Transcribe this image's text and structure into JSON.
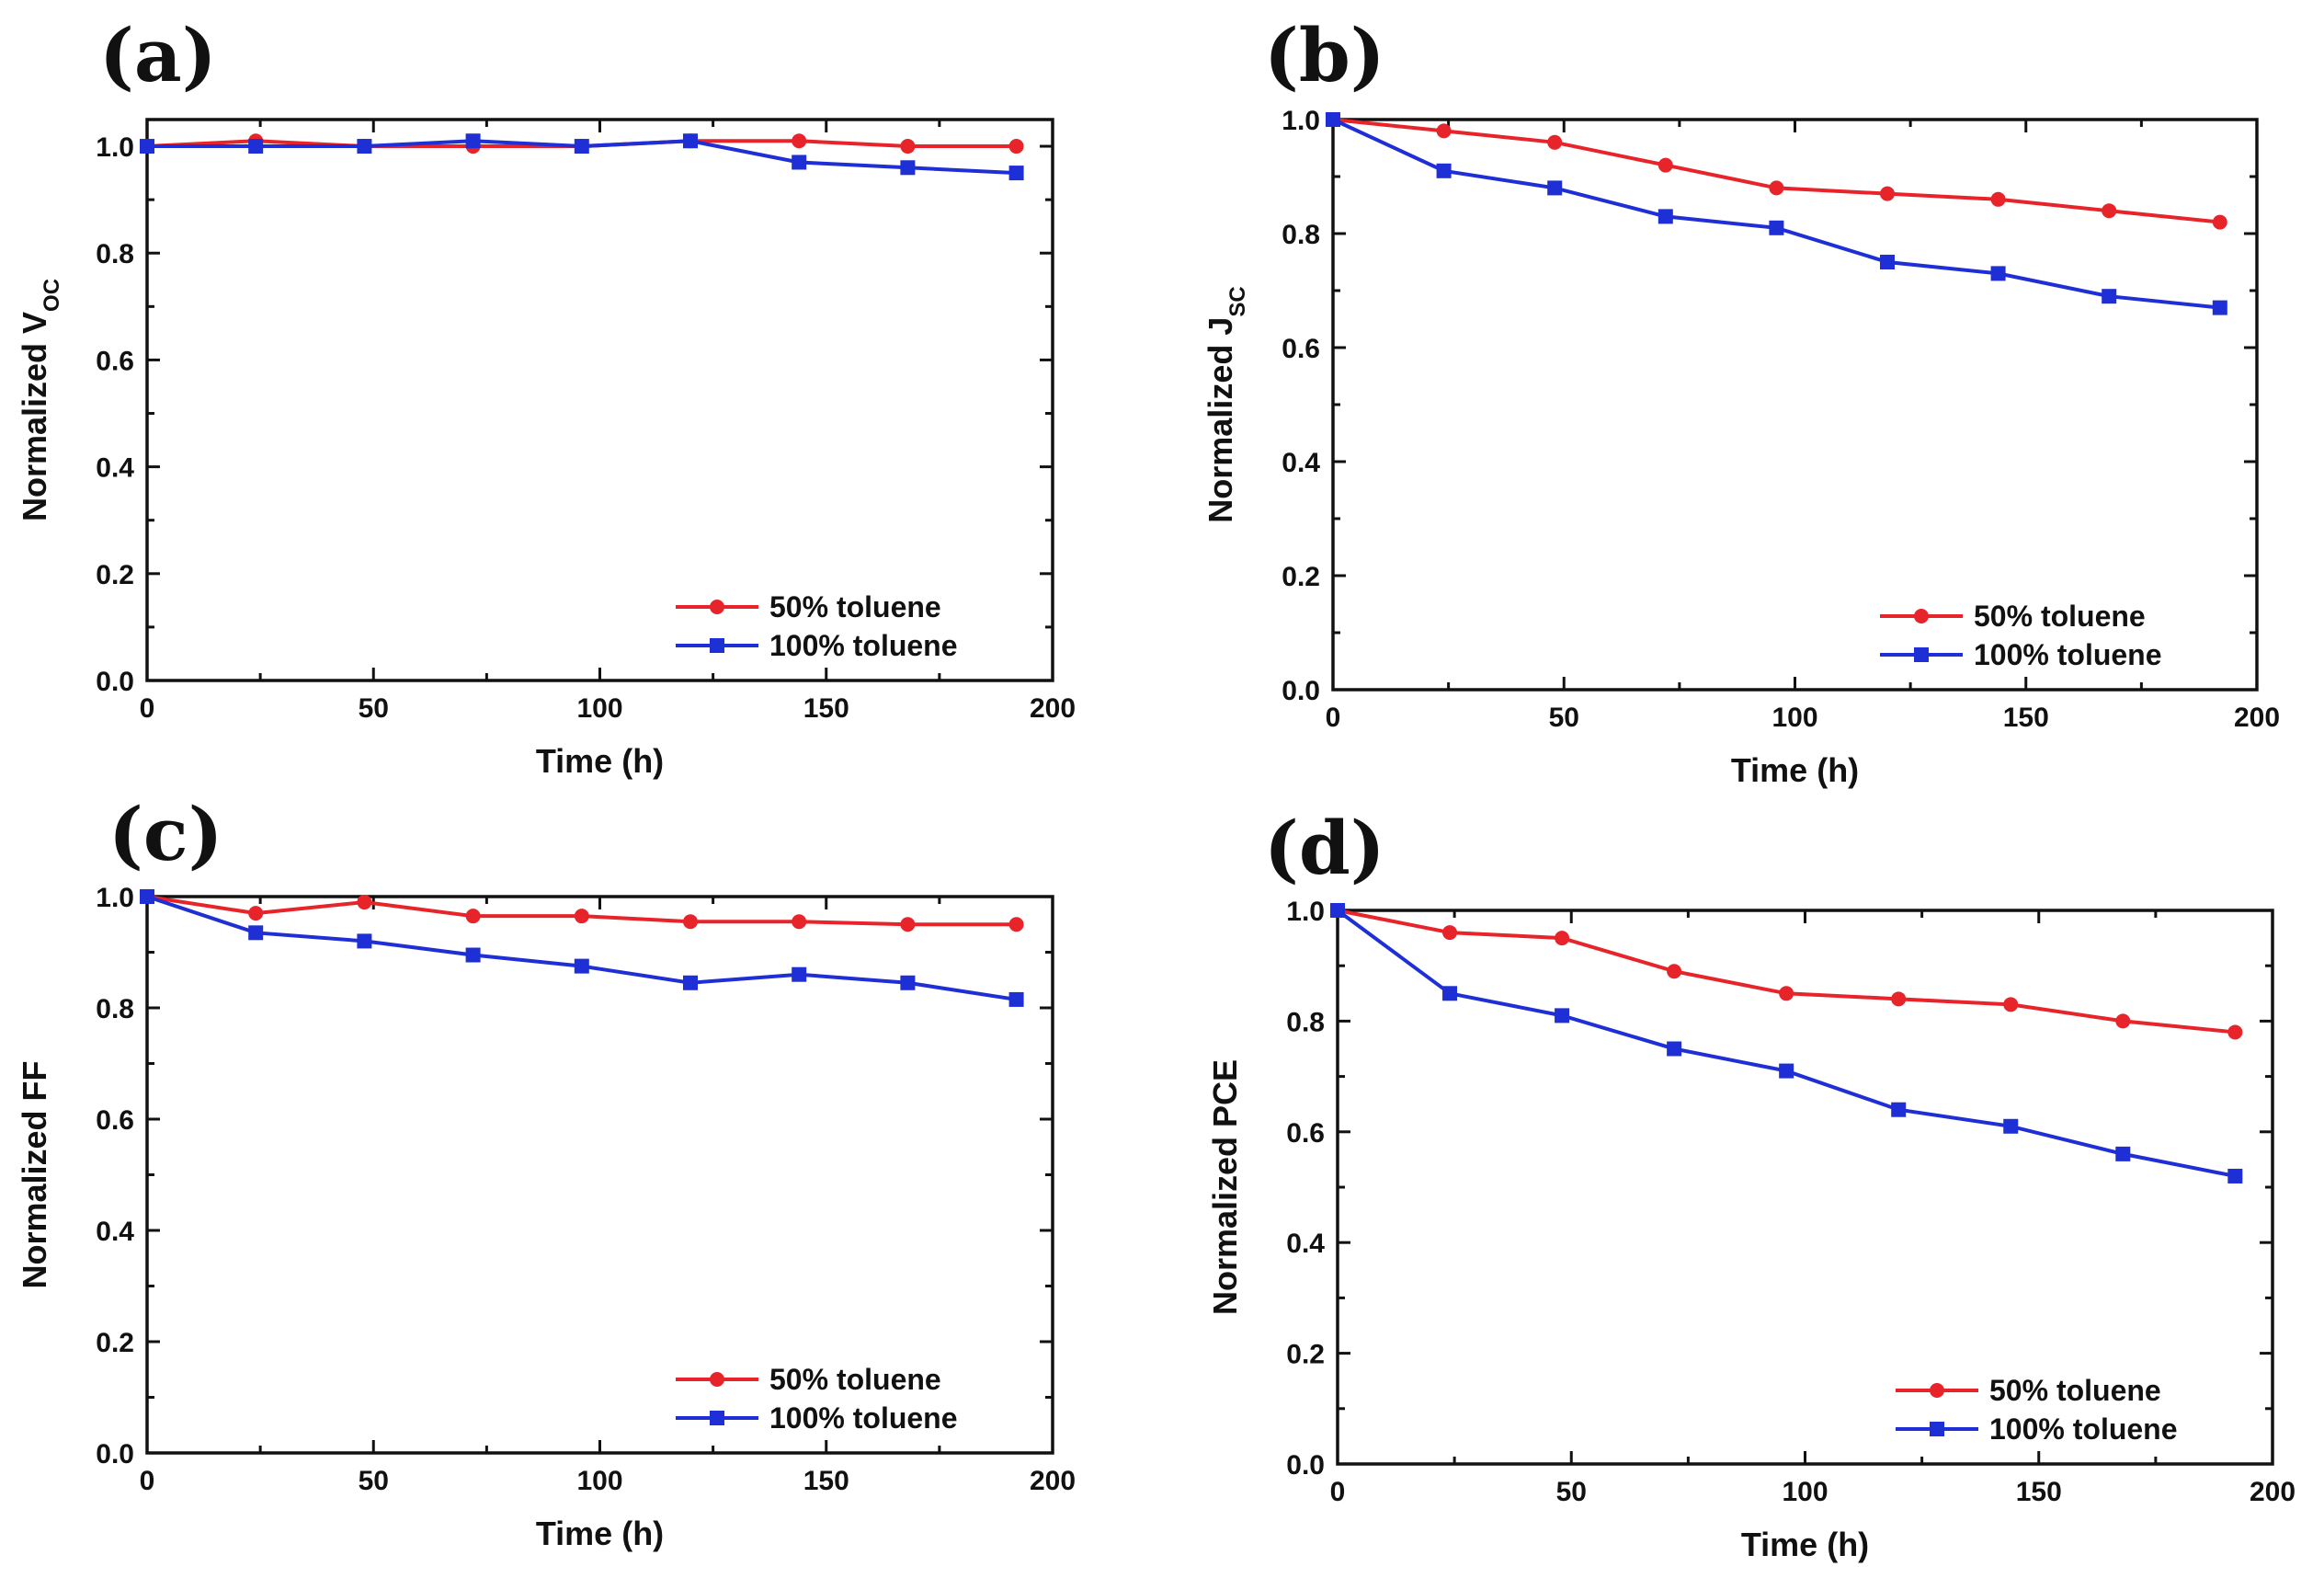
{
  "chart_data": [
    {
      "type": "line",
      "panel_label": "(a)",
      "x": [
        0,
        24,
        48,
        72,
        96,
        120,
        144,
        168,
        192
      ],
      "xlabel": "Time (h)",
      "ylabel_main": "Normalized V",
      "ylabel_sub": "OC",
      "xlim": [
        0,
        200
      ],
      "ylim": [
        0.0,
        1.05
      ],
      "xticks": [
        0,
        50,
        100,
        150,
        200
      ],
      "yticks": [
        "0.0",
        "0.2",
        "0.4",
        "0.6",
        "0.8",
        "1.0"
      ],
      "legend_position": "bottom-right",
      "series": [
        {
          "name": "50%  toluene",
          "color": "#e8242b",
          "marker": "circle",
          "values": [
            1.0,
            1.01,
            1.0,
            1.0,
            1.0,
            1.01,
            1.01,
            1.0,
            1.0
          ]
        },
        {
          "name": "100% toluene",
          "color": "#1f2fd6",
          "marker": "square",
          "values": [
            1.0,
            1.0,
            1.0,
            1.01,
            1.0,
            1.01,
            0.97,
            0.96,
            0.95
          ]
        }
      ]
    },
    {
      "type": "line",
      "panel_label": "(b)",
      "x": [
        0,
        24,
        48,
        72,
        96,
        120,
        144,
        168,
        192
      ],
      "xlabel": "Time (h)",
      "ylabel_main": "Normalized J",
      "ylabel_sub": "SC",
      "xlim": [
        0,
        200
      ],
      "ylim": [
        0.0,
        1.0
      ],
      "xticks": [
        0,
        50,
        100,
        150,
        200
      ],
      "yticks": [
        "0.0",
        "0.2",
        "0.4",
        "0.6",
        "0.8",
        "1.0"
      ],
      "legend_position": "bottom-right",
      "series": [
        {
          "name": "50%  toluene",
          "color": "#e8242b",
          "marker": "circle",
          "values": [
            1.0,
            0.98,
            0.96,
            0.92,
            0.88,
            0.87,
            0.86,
            0.84,
            0.82
          ]
        },
        {
          "name": "100%  toluene",
          "color": "#1f2fd6",
          "marker": "square",
          "values": [
            1.0,
            0.91,
            0.88,
            0.83,
            0.81,
            0.75,
            0.73,
            0.69,
            0.67
          ]
        }
      ]
    },
    {
      "type": "line",
      "panel_label": "(c)",
      "x": [
        0,
        24,
        48,
        72,
        96,
        120,
        144,
        168,
        192
      ],
      "xlabel": "Time (h)",
      "ylabel_main": "Normalized FF",
      "ylabel_sub": "",
      "xlim": [
        0,
        200
      ],
      "ylim": [
        0.0,
        1.0
      ],
      "xticks": [
        0,
        50,
        100,
        150,
        200
      ],
      "yticks": [
        "0.0",
        "0.2",
        "0.4",
        "0.6",
        "0.8",
        "1.0"
      ],
      "legend_position": "bottom-right",
      "series": [
        {
          "name": "50%  toluene",
          "color": "#e8242b",
          "marker": "circle",
          "values": [
            1.0,
            0.97,
            0.99,
            0.965,
            0.965,
            0.955,
            0.955,
            0.95,
            0.95
          ]
        },
        {
          "name": "100%  toluene",
          "color": "#1f2fd6",
          "marker": "square",
          "values": [
            1.0,
            0.935,
            0.92,
            0.895,
            0.875,
            0.845,
            0.86,
            0.845,
            0.815
          ]
        }
      ]
    },
    {
      "type": "line",
      "panel_label": "(d)",
      "x": [
        0,
        24,
        48,
        72,
        96,
        120,
        144,
        168,
        192
      ],
      "xlabel": "Time (h)",
      "ylabel_main": "Normalized PCE",
      "ylabel_sub": "",
      "xlim": [
        0,
        200
      ],
      "ylim": [
        0.0,
        1.0
      ],
      "xticks": [
        0,
        50,
        100,
        150,
        200
      ],
      "yticks": [
        "0.0",
        "0.2",
        "0.4",
        "0.6",
        "0.8",
        "1.0"
      ],
      "legend_position": "bottom-right",
      "series": [
        {
          "name": "50% toluene",
          "color": "#e8242b",
          "marker": "circle",
          "values": [
            1.0,
            0.96,
            0.95,
            0.89,
            0.85,
            0.84,
            0.83,
            0.8,
            0.78
          ]
        },
        {
          "name": "100% toluene",
          "color": "#1f2fd6",
          "marker": "square",
          "values": [
            1.0,
            0.85,
            0.81,
            0.75,
            0.71,
            0.64,
            0.61,
            0.56,
            0.52
          ]
        }
      ]
    }
  ]
}
